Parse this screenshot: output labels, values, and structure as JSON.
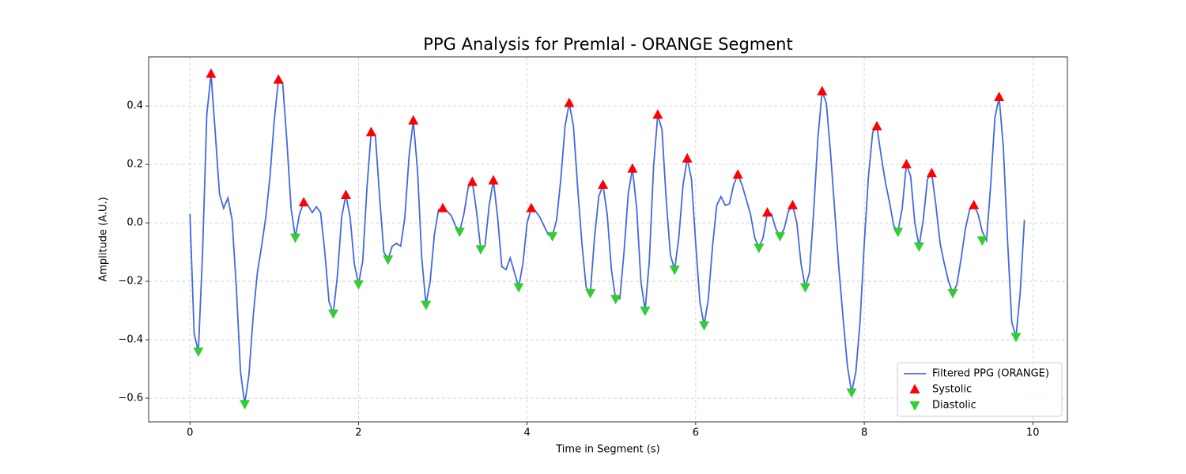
{
  "chart_data": {
    "type": "line",
    "title": "PPG Analysis for Premlal - ORANGE Segment",
    "xlabel": "Time in Segment (s)",
    "ylabel": "Amplitude (A.U.)",
    "x": [
      0,
      0.05,
      0.1,
      0.15,
      0.2,
      0.25,
      0.3,
      0.35,
      0.4,
      0.45,
      0.5,
      0.55,
      0.6,
      0.65,
      0.7,
      0.75,
      0.8,
      0.85,
      0.9,
      0.95,
      1,
      1.05,
      1.1,
      1.15,
      1.2,
      1.25,
      1.3,
      1.35,
      1.4,
      1.45,
      1.5,
      1.55,
      1.6,
      1.65,
      1.7,
      1.75,
      1.8,
      1.85,
      1.9,
      1.95,
      2,
      2.05,
      2.1,
      2.15,
      2.2,
      2.25,
      2.3,
      2.35,
      2.4,
      2.45,
      2.5,
      2.55,
      2.6,
      2.65,
      2.7,
      2.75,
      2.8,
      2.85,
      2.9,
      2.95,
      3,
      3.05,
      3.1,
      3.15,
      3.2,
      3.25,
      3.3,
      3.35,
      3.4,
      3.45,
      3.5,
      3.55,
      3.6,
      3.65,
      3.7,
      3.75,
      3.8,
      3.85,
      3.9,
      3.95,
      4,
      4.05,
      4.1,
      4.15,
      4.2,
      4.25,
      4.3,
      4.35,
      4.4,
      4.45,
      4.5,
      4.55,
      4.6,
      4.65,
      4.7,
      4.75,
      4.8,
      4.85,
      4.9,
      4.95,
      5,
      5.05,
      5.1,
      5.15,
      5.2,
      5.25,
      5.3,
      5.35,
      5.4,
      5.45,
      5.5,
      5.55,
      5.6,
      5.65,
      5.7,
      5.75,
      5.8,
      5.85,
      5.9,
      5.95,
      6,
      6.05,
      6.1,
      6.15,
      6.2,
      6.25,
      6.3,
      6.35,
      6.4,
      6.45,
      6.5,
      6.55,
      6.6,
      6.65,
      6.7,
      6.75,
      6.8,
      6.85,
      6.9,
      6.95,
      7,
      7.05,
      7.1,
      7.15,
      7.2,
      7.25,
      7.3,
      7.35,
      7.4,
      7.45,
      7.5,
      7.55,
      7.6,
      7.65,
      7.7,
      7.75,
      7.8,
      7.85,
      7.9,
      7.95,
      8,
      8.05,
      8.1,
      8.15,
      8.2,
      8.25,
      8.3,
      8.35,
      8.4,
      8.45,
      8.5,
      8.55,
      8.6,
      8.65,
      8.7,
      8.75,
      8.8,
      8.85,
      8.9,
      8.95,
      9,
      9.05,
      9.1,
      9.15,
      9.2,
      9.25,
      9.3,
      9.35,
      9.4,
      9.45,
      9.5,
      9.55,
      9.6,
      9.65,
      9.7,
      9.75,
      9.8,
      9.85,
      9.9
    ],
    "series": [
      {
        "name": "Filtered PPG (ORANGE)",
        "type": "line",
        "color": "#4169e1",
        "values": [
          0.03,
          -0.38,
          -0.44,
          -0.1,
          0.37,
          0.51,
          0.31,
          0.1,
          0.05,
          0.085,
          0.01,
          -0.22,
          -0.51,
          -0.62,
          -0.52,
          -0.32,
          -0.17,
          -0.08,
          0.02,
          0.16,
          0.35,
          0.49,
          0.48,
          0.28,
          0.05,
          -0.05,
          0.03,
          0.07,
          0.06,
          0.035,
          0.055,
          0.035,
          -0.1,
          -0.27,
          -0.31,
          -0.18,
          0.02,
          0.095,
          0.02,
          -0.14,
          -0.21,
          -0.13,
          0.12,
          0.31,
          0.3,
          0.09,
          -0.1,
          -0.125,
          -0.08,
          -0.07,
          -0.08,
          0.02,
          0.23,
          0.35,
          0.18,
          -0.12,
          -0.28,
          -0.2,
          -0.04,
          0.045,
          0.05,
          0.04,
          0.025,
          -0.01,
          -0.03,
          0.03,
          0.12,
          0.14,
          0.04,
          -0.09,
          -0.08,
          0.06,
          0.145,
          0.02,
          -0.15,
          -0.16,
          -0.12,
          -0.17,
          -0.22,
          -0.14,
          0.0,
          0.05,
          0.04,
          0.02,
          -0.01,
          -0.04,
          -0.045,
          0.01,
          0.15,
          0.33,
          0.41,
          0.33,
          0.12,
          -0.07,
          -0.22,
          -0.24,
          -0.05,
          0.09,
          0.13,
          0.03,
          -0.16,
          -0.26,
          -0.26,
          -0.1,
          0.1,
          0.185,
          0.05,
          -0.2,
          -0.3,
          -0.13,
          0.19,
          0.37,
          0.32,
          0.08,
          -0.11,
          -0.16,
          -0.05,
          0.13,
          0.22,
          0.15,
          -0.07,
          -0.27,
          -0.35,
          -0.26,
          -0.08,
          0.06,
          0.09,
          0.06,
          0.065,
          0.13,
          0.165,
          0.13,
          0.08,
          0.03,
          -0.05,
          -0.085,
          -0.05,
          0.035,
          0.03,
          -0.02,
          -0.045,
          -0.02,
          0.04,
          0.06,
          0.0,
          -0.14,
          -0.22,
          -0.17,
          0.04,
          0.29,
          0.45,
          0.41,
          0.24,
          0.04,
          -0.16,
          -0.33,
          -0.49,
          -0.58,
          -0.51,
          -0.34,
          -0.07,
          0.16,
          0.31,
          0.33,
          0.23,
          0.14,
          0.07,
          -0.01,
          -0.03,
          0.05,
          0.2,
          0.16,
          0.0,
          -0.08,
          0.01,
          0.15,
          0.17,
          0.06,
          -0.07,
          -0.14,
          -0.2,
          -0.24,
          -0.21,
          -0.12,
          -0.02,
          0.045,
          0.06,
          0.03,
          -0.03,
          -0.06,
          0.13,
          0.36,
          0.43,
          0.26,
          -0.06,
          -0.34,
          -0.39,
          -0.24,
          0.01
        ]
      },
      {
        "name": "Systolic",
        "type": "scatter",
        "marker": "triangle-up",
        "color": "#ff0000",
        "x": [
          0.25,
          1.05,
          1.35,
          1.85,
          2.15,
          2.65,
          3.0,
          3.35,
          3.6,
          4.05,
          4.5,
          4.9,
          5.25,
          5.55,
          5.9,
          6.5,
          6.85,
          7.15,
          7.5,
          8.15,
          8.5,
          8.8,
          9.3,
          9.6
        ],
        "values": [
          0.51,
          0.49,
          0.07,
          0.095,
          0.31,
          0.35,
          0.05,
          0.14,
          0.145,
          0.05,
          0.41,
          0.13,
          0.185,
          0.37,
          0.22,
          0.165,
          0.035,
          0.06,
          0.45,
          0.33,
          0.2,
          0.17,
          0.06,
          0.43
        ]
      },
      {
        "name": "Diastolic",
        "type": "scatter",
        "marker": "triangle-down",
        "color": "#32cd32",
        "x": [
          0.1,
          0.65,
          1.25,
          1.7,
          2.0,
          2.35,
          2.8,
          3.2,
          3.45,
          3.9,
          4.3,
          4.75,
          5.05,
          5.4,
          5.75,
          6.1,
          6.75,
          7.0,
          7.3,
          7.85,
          8.4,
          8.65,
          9.05,
          9.4,
          9.8
        ],
        "values": [
          -0.44,
          -0.62,
          -0.05,
          -0.31,
          -0.21,
          -0.125,
          -0.28,
          -0.03,
          -0.09,
          -0.22,
          -0.045,
          -0.24,
          -0.26,
          -0.3,
          -0.16,
          -0.35,
          -0.085,
          -0.045,
          -0.22,
          -0.58,
          -0.03,
          -0.08,
          -0.24,
          -0.06,
          -0.39
        ]
      }
    ],
    "xlim": [
      -0.49,
      10.41
    ],
    "ylim": [
      -0.681,
      0.568
    ],
    "xticks": [
      0,
      2,
      4,
      6,
      8,
      10
    ],
    "yticks": [
      {
        "value": -0.6,
        "label": "−0.6"
      },
      {
        "value": -0.4,
        "label": "−0.4"
      },
      {
        "value": -0.2,
        "label": "−0.2"
      },
      {
        "value": 0,
        "label": "0.0"
      },
      0.2,
      0.4
    ],
    "grid": true,
    "legend": "lower right"
  }
}
